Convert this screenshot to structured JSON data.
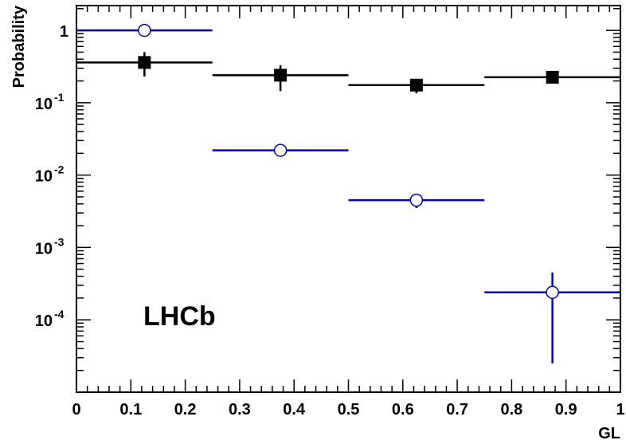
{
  "chart_data": {
    "type": "scatter",
    "title": "",
    "xlabel": "GL",
    "ylabel": "Probability",
    "annotation": "LHCb",
    "xlim": [
      0,
      1
    ],
    "ylim": [
      1e-05,
      2.2
    ],
    "yscale": "log",
    "grid": false,
    "legend": "none",
    "x_ticks": [
      0,
      0.1,
      0.2,
      0.3,
      0.4,
      0.5,
      0.6,
      0.7,
      0.8,
      0.9,
      1
    ],
    "x_tick_labels": [
      "0",
      "0.1",
      "0.2",
      "0.3",
      "0.4",
      "0.5",
      "0.6",
      "0.7",
      "0.8",
      "0.9",
      "1"
    ],
    "y_ticks": [
      {
        "value": 1,
        "base": "1",
        "exp": ""
      },
      {
        "value": 0.1,
        "base": "10",
        "exp": "-1"
      },
      {
        "value": 0.01,
        "base": "10",
        "exp": "-2"
      },
      {
        "value": 0.001,
        "base": "10",
        "exp": "-3"
      },
      {
        "value": 0.0001,
        "base": "10",
        "exp": "-4"
      }
    ],
    "series": [
      {
        "marker": "filled-square",
        "color": "#000000",
        "points": [
          {
            "x": 0.125,
            "xlow": 0.0,
            "xhigh": 0.25,
            "y": 0.36,
            "ylow": 0.23,
            "yhigh": 0.5
          },
          {
            "x": 0.375,
            "xlow": 0.25,
            "xhigh": 0.5,
            "y": 0.24,
            "ylow": 0.145,
            "yhigh": 0.33
          },
          {
            "x": 0.625,
            "xlow": 0.5,
            "xhigh": 0.75,
            "y": 0.175,
            "ylow": 0.135,
            "yhigh": 0.2
          },
          {
            "x": 0.875,
            "xlow": 0.75,
            "xhigh": 1.0,
            "y": 0.225,
            "ylow": 0.215,
            "yhigh": 0.235
          }
        ]
      },
      {
        "marker": "open-circle",
        "color": "#0000cc",
        "points": [
          {
            "x": 0.125,
            "xlow": 0.0,
            "xhigh": 0.25,
            "y": 1.0,
            "ylow": 0.97,
            "yhigh": 1.03
          },
          {
            "x": 0.375,
            "xlow": 0.25,
            "xhigh": 0.5,
            "y": 0.022,
            "ylow": 0.0215,
            "yhigh": 0.0225
          },
          {
            "x": 0.625,
            "xlow": 0.5,
            "xhigh": 0.75,
            "y": 0.0045,
            "ylow": 0.0035,
            "yhigh": 0.0052
          },
          {
            "x": 0.875,
            "xlow": 0.75,
            "xhigh": 1.0,
            "y": 0.00024,
            "ylow": 2.5e-05,
            "yhigh": 0.00045
          }
        ]
      }
    ]
  }
}
